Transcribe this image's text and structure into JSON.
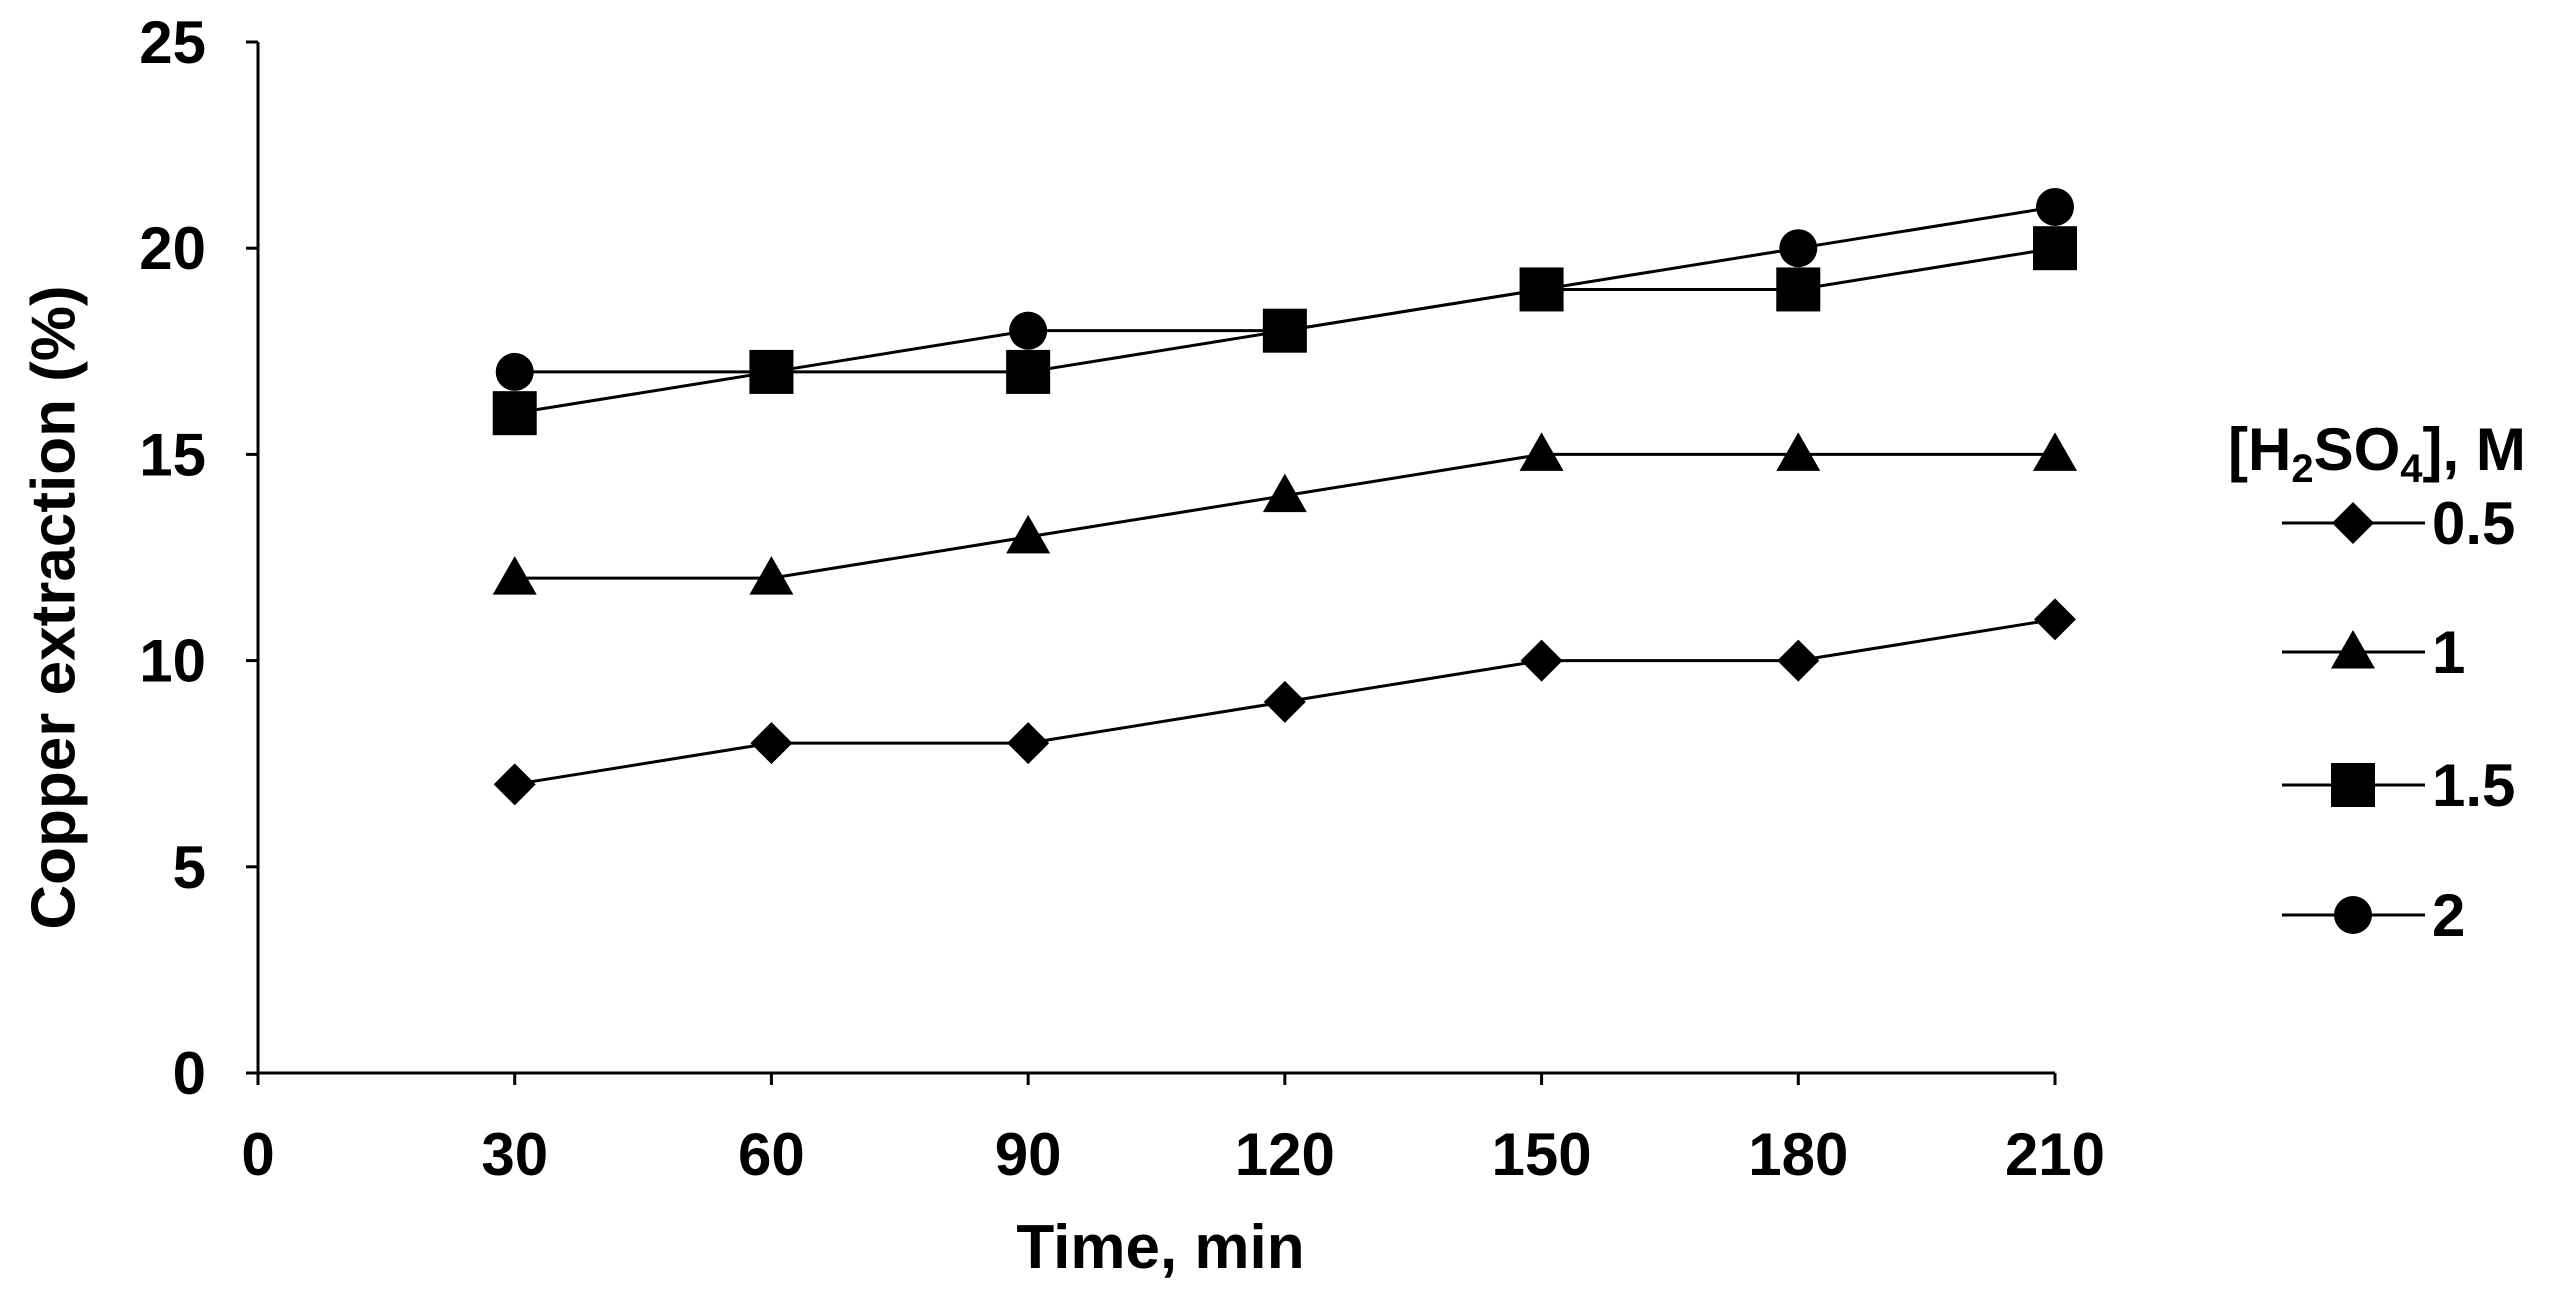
{
  "chart_data": {
    "type": "line",
    "title": "",
    "xlabel": "Time, min",
    "ylabel": "Copper extraction (%)",
    "xlim": [
      0,
      210
    ],
    "ylim": [
      0,
      25
    ],
    "x_ticks": [
      "0",
      "30",
      "60",
      "90",
      "120",
      "150",
      "180",
      "210"
    ],
    "y_ticks": [
      "0",
      "5",
      "10",
      "15",
      "20",
      "25"
    ],
    "grid": false,
    "legend_position": "right",
    "legend_title": {
      "prefix": "[H",
      "sub1": "2",
      "mid": "SO",
      "sub2": "4",
      "suffix": "], M"
    },
    "x": [
      30,
      60,
      90,
      120,
      150,
      180,
      210
    ],
    "series": [
      {
        "name": "0.5",
        "marker": "diamond",
        "values": [
          7,
          8,
          8,
          9,
          10,
          10,
          11
        ]
      },
      {
        "name": "1",
        "marker": "triangle",
        "values": [
          12,
          12,
          13,
          14,
          15,
          15,
          15
        ]
      },
      {
        "name": "1.5",
        "marker": "square",
        "values": [
          16,
          17,
          17,
          18,
          19,
          19,
          20
        ]
      },
      {
        "name": "2",
        "marker": "circle",
        "values": [
          17,
          17,
          18,
          18,
          19,
          20,
          21
        ]
      }
    ],
    "line_color": "#000000",
    "marker_color": "#000000"
  }
}
